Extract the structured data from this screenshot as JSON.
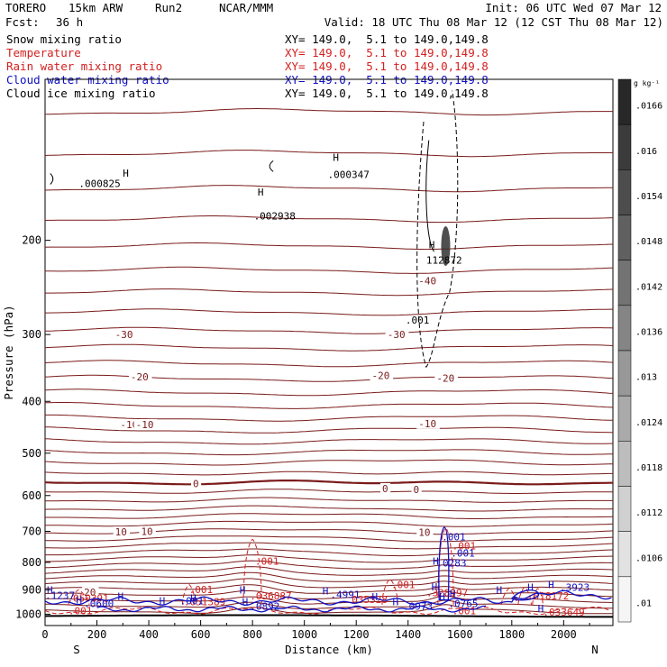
{
  "header": {
    "model": "TORERO",
    "resolution": "15km ARW",
    "run": "Run2",
    "org": "NCAR/MMM",
    "init": "Init: 06 UTC Wed 07 Mar 12",
    "fcst_label": "Fcst:",
    "fcst_value": "36 h",
    "valid": "Valid: 18 UTC Thu 08 Mar 12 (12 CST Thu 08 Mar 12)"
  },
  "fields": [
    {
      "name": "Snow mixing ratio",
      "xy": "XY= 149.0,  5.1 to 149.0,149.8",
      "color": "#000000"
    },
    {
      "name": "Temperature",
      "xy": "XY= 149.0,  5.1 to 149.0,149.8",
      "color": "#d42020"
    },
    {
      "name": "Rain water mixing ratio",
      "xy": "XY= 149.0,  5.1 to 149.0,149.8",
      "color": "#d42020"
    },
    {
      "name": "Cloud water mixing ratio",
      "xy": "XY= 149.0,  5.1 to 149.0,149.8",
      "color": "#1010c0"
    },
    {
      "name": "Cloud ice mixing ratio",
      "xy": "XY= 149.0,  5.1 to 149.0,149.8",
      "color": "#000000"
    }
  ],
  "chart_data": {
    "type": "cross-section contour",
    "xlabel": "Distance (km)",
    "ylabel": "Pressure (hPa)",
    "xlim": [
      0,
      2190
    ],
    "ylim": [
      1050,
      100
    ],
    "y_scale": "log",
    "x_ticks": [
      0,
      200,
      400,
      600,
      800,
      1000,
      1200,
      1400,
      1600,
      1800,
      2000
    ],
    "y_ticks": [
      200,
      300,
      400,
      500,
      600,
      700,
      800,
      900,
      1000
    ],
    "endpoints": {
      "left": "S",
      "right": "N"
    },
    "colorbar": {
      "unit": "g kg⁻¹",
      "ticks": [
        ".0166",
        ".016",
        ".0154",
        ".0148",
        ".0142",
        ".0136",
        ".013",
        ".0124",
        ".0118",
        ".0112",
        ".0106",
        ".01"
      ]
    },
    "temperature_contours": {
      "levels_labeled": [
        -40,
        -30,
        -20,
        -10,
        0,
        10,
        20
      ],
      "color": "#7a1a1a",
      "labels": [
        {
          "x": 1440,
          "p": 238,
          "text": "-40"
        },
        {
          "x": 270,
          "p": 300,
          "text": "-30"
        },
        {
          "x": 1320,
          "p": 300,
          "text": "-30"
        },
        {
          "x": 330,
          "p": 360,
          "text": "-20"
        },
        {
          "x": 1260,
          "p": 358,
          "text": "-20"
        },
        {
          "x": 1510,
          "p": 362,
          "text": "-20"
        },
        {
          "x": 290,
          "p": 442,
          "text": "-10"
        },
        {
          "x": 350,
          "p": 442,
          "text": "-10"
        },
        {
          "x": 1440,
          "p": 440,
          "text": "-10"
        },
        {
          "x": 570,
          "p": 570,
          "text": "0"
        },
        {
          "x": 1300,
          "p": 582,
          "text": "0"
        },
        {
          "x": 1420,
          "p": 584,
          "text": "0"
        },
        {
          "x": 270,
          "p": 702,
          "text": "10"
        },
        {
          "x": 370,
          "p": 700,
          "text": "10"
        },
        {
          "x": 1440,
          "p": 703,
          "text": "10"
        },
        {
          "x": 150,
          "p": 910,
          "text": "20"
        }
      ]
    },
    "rain_labels": [
      {
        "x": 810,
        "p": 808,
        "text": ".001"
      },
      {
        "x": 555,
        "p": 913,
        "text": ".001"
      },
      {
        "x": 1335,
        "p": 893,
        "text": ".001"
      },
      {
        "x": 85,
        "p": 948,
        "text": ".050391"
      },
      {
        "x": 535,
        "p": 962,
        "text": ".051389"
      },
      {
        "x": 790,
        "p": 938,
        "text": ".036887"
      },
      {
        "x": 1160,
        "p": 953,
        "text": ".035528"
      },
      {
        "x": 1470,
        "p": 926,
        "text": ".328997"
      },
      {
        "x": 1860,
        "p": 938,
        "text": ".018172"
      },
      {
        "x": 1920,
        "p": 1006,
        "text": ".033649"
      },
      {
        "x": 1570,
        "p": 1000,
        "text": ".001"
      },
      {
        "x": 90,
        "p": 1000,
        "text": ".001"
      },
      {
        "x": 1570,
        "p": 756,
        "text": ".001"
      }
    ],
    "cloud_water_labels": [
      {
        "x": 1530,
        "p": 728,
        "text": ".001"
      },
      {
        "x": 1565,
        "p": 780,
        "text": ".001"
      },
      {
        "x": 1510,
        "p": 815,
        "text": ".0283"
      },
      {
        "x": 1985,
        "p": 905,
        "text": ".3923"
      },
      {
        "x": 1100,
        "p": 933,
        "text": ".4991"
      },
      {
        "x": 520,
        "p": 958,
        "text": ".001"
      },
      {
        "x": 0,
        "p": 937,
        "text": ".1237"
      },
      {
        "x": 150,
        "p": 970,
        "text": ".0600"
      },
      {
        "x": 790,
        "p": 982,
        "text": ".0892"
      },
      {
        "x": 1380,
        "p": 982,
        "text": ".0973"
      },
      {
        "x": 1555,
        "p": 970,
        "text": ".0765"
      }
    ],
    "snow_labels": [
      {
        "x": 130,
        "p": 159,
        "text": ".000825"
      },
      {
        "x": 1090,
        "p": 153,
        "text": ".000347"
      },
      {
        "x": 805,
        "p": 183,
        "text": ".002938"
      },
      {
        "x": 1470,
        "p": 221,
        "text": "112872"
      },
      {
        "x": 1390,
        "p": 286,
        "text": ".001"
      }
    ],
    "maxima_markers": [
      {
        "x": 300,
        "p": 152
      },
      {
        "x": 820,
        "p": 165
      },
      {
        "x": 1110,
        "p": 142
      },
      {
        "x": 1480,
        "p": 207
      },
      {
        "x": 0,
        "p": 915
      },
      {
        "x": 120,
        "p": 955
      },
      {
        "x": 280,
        "p": 940
      },
      {
        "x": 440,
        "p": 958
      },
      {
        "x": 560,
        "p": 947
      },
      {
        "x": 750,
        "p": 914
      },
      {
        "x": 760,
        "p": 963
      },
      {
        "x": 1070,
        "p": 918
      },
      {
        "x": 1260,
        "p": 942
      },
      {
        "x": 1340,
        "p": 963
      },
      {
        "x": 1490,
        "p": 903
      },
      {
        "x": 1495,
        "p": 808
      },
      {
        "x": 1520,
        "p": 940
      },
      {
        "x": 1560,
        "p": 930
      },
      {
        "x": 1740,
        "p": 914
      },
      {
        "x": 1860,
        "p": 905
      },
      {
        "x": 1900,
        "p": 990
      },
      {
        "x": 1940,
        "p": 893
      }
    ]
  }
}
